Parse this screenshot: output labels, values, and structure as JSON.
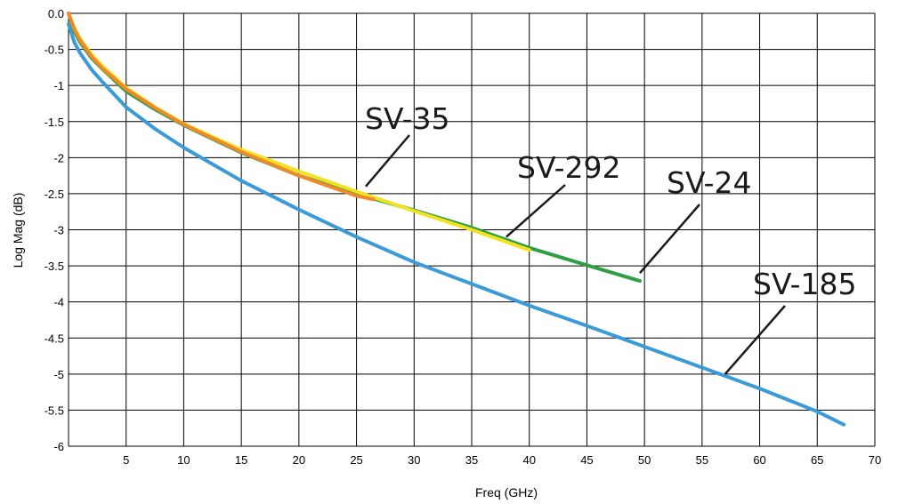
{
  "chart_data": {
    "type": "line",
    "title": "",
    "xlabel": "Freq (GHz)",
    "ylabel": "Log Mag (dB)",
    "xlim": [
      0,
      70
    ],
    "ylim": [
      -6,
      0
    ],
    "xticks": [
      5,
      10,
      15,
      20,
      25,
      30,
      35,
      40,
      45,
      50,
      55,
      60,
      65,
      70
    ],
    "yticks": [
      "0.0",
      "-0.5",
      "-1",
      "-1.5",
      "-2",
      "-2.5",
      "-3",
      "-3.5",
      "-4",
      "-4.5",
      "-5",
      "-5.5",
      "-6"
    ],
    "grid": true,
    "legend": "none",
    "series": [
      {
        "name": "SV-185",
        "color": "#3b9ad8",
        "x": [
          0,
          0.5,
          1,
          2,
          3,
          5,
          7.5,
          10,
          15,
          20,
          25,
          30,
          35,
          40,
          45,
          50,
          55,
          60,
          65,
          67.3
        ],
        "y": [
          -0.15,
          -0.4,
          -0.55,
          -0.78,
          -0.96,
          -1.3,
          -1.6,
          -1.86,
          -2.32,
          -2.72,
          -3.1,
          -3.45,
          -3.75,
          -4.05,
          -4.33,
          -4.62,
          -4.91,
          -5.2,
          -5.52,
          -5.7
        ]
      },
      {
        "name": "SV-24",
        "color": "#2e9f43",
        "x": [
          0,
          0.5,
          1,
          2,
          3,
          5,
          7.5,
          10,
          15,
          20,
          25,
          30,
          35,
          40,
          45,
          49.6
        ],
        "y": [
          0,
          -0.25,
          -0.4,
          -0.62,
          -0.78,
          -1.08,
          -1.33,
          -1.55,
          -1.93,
          -2.25,
          -2.5,
          -2.73,
          -2.97,
          -3.25,
          -3.49,
          -3.71
        ]
      },
      {
        "name": "SV-292",
        "color": "#f2e21f",
        "x": [
          0,
          0.5,
          1,
          2,
          3,
          5,
          7.5,
          10,
          15,
          20,
          25,
          30,
          35,
          40
        ],
        "y": [
          0,
          -0.2,
          -0.35,
          -0.57,
          -0.74,
          -1.03,
          -1.3,
          -1.53,
          -1.89,
          -2.19,
          -2.47,
          -2.74,
          -3.0,
          -3.28
        ]
      },
      {
        "name": "SV-35",
        "color": "#ef8a2c",
        "x": [
          0,
          0.5,
          1,
          2,
          3,
          5,
          7.5,
          10,
          15,
          20,
          25,
          26.5
        ],
        "y": [
          0,
          -0.22,
          -0.37,
          -0.6,
          -0.77,
          -1.05,
          -1.31,
          -1.54,
          -1.92,
          -2.25,
          -2.53,
          -2.58
        ]
      }
    ],
    "annotations": [
      {
        "text": "SV-35",
        "x": 25.8,
        "y": -2.4
      },
      {
        "text": "SV-292",
        "x": 38,
        "y": -3.1
      },
      {
        "text": "SV-24",
        "x": 49.6,
        "y": -3.6
      },
      {
        "text": "SV-185",
        "x": 57,
        "y": -5.0
      }
    ]
  }
}
